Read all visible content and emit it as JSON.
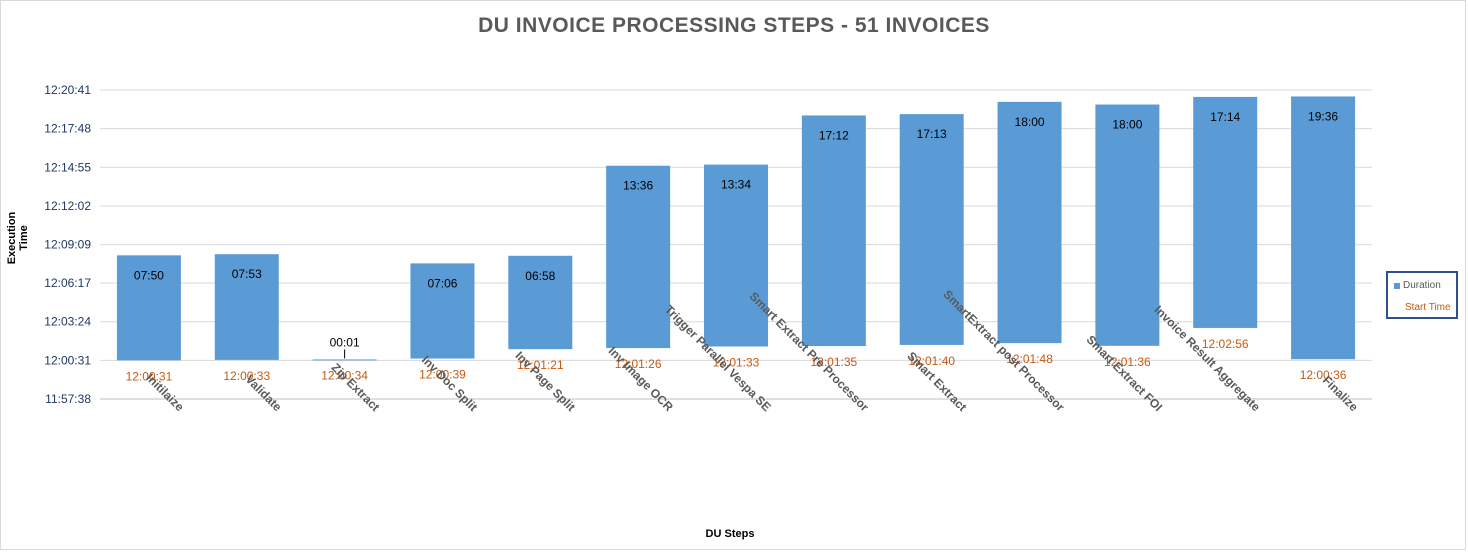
{
  "chart_data": {
    "type": "bar",
    "title": "DU INVOICE PROCESSING STEPS - 51 INVOICES",
    "xlabel": "DU Steps",
    "ylabel": "Execution Time",
    "y_ticks": [
      "11:57:38",
      "12:00:31",
      "12:03:24",
      "12:06:17",
      "12:09:09",
      "12:12:02",
      "12:14:55",
      "12:17:48",
      "12:20:41"
    ],
    "ylim": [
      "11:57:38",
      "12:20:41"
    ],
    "grid": true,
    "legend_position": "right",
    "categories": [
      "Initilaize",
      "Validate",
      "Zip Extract",
      "Inv Doc Split",
      "Inv Page Split",
      "Inv Image OCR",
      "Trigger Parallel Vespa SE",
      "Smart Extract Pre Processor",
      "Smart Extract",
      "SmartExtract post Processor",
      "Smart Extract FOI",
      "Invoice Result Aggregate",
      "Finalize"
    ],
    "series": [
      {
        "name": "Start Time",
        "values": [
          "12:00:31",
          "12:00:33",
          "12:00:34",
          "12:00:39",
          "12:01:21",
          "12:01:26",
          "12:01:33",
          "12:01:35",
          "12:01:40",
          "12:01:48",
          "12:01:36",
          "12:02:56",
          "12:00:36"
        ]
      },
      {
        "name": "Duration",
        "values": [
          "07:50",
          "07:53",
          "00:01",
          "07:06",
          "06:58",
          "13:36",
          "13:34",
          "17:12",
          "17:13",
          "18:00",
          "18:00",
          "17:14",
          "19:36"
        ]
      }
    ],
    "colors": {
      "duration": "#5b9bd5",
      "start_label": "#c55a11",
      "grid": "#d9d9d9",
      "axis_text": "#1f3864"
    }
  }
}
